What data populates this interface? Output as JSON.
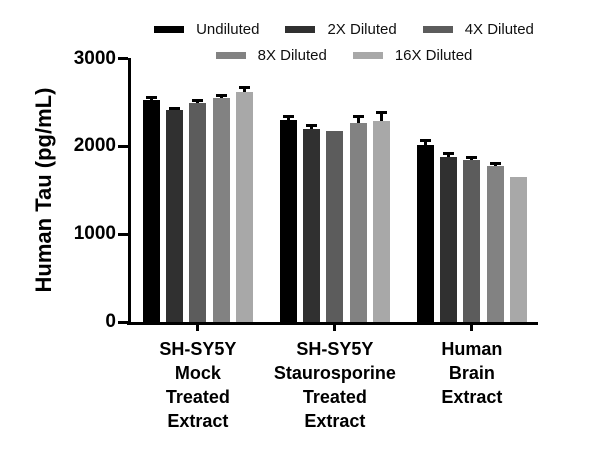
{
  "chart_data": {
    "type": "bar",
    "title": "",
    "ylabel": "Human Tau (pg/mL)",
    "xlabel": "",
    "ylim": [
      0,
      3000
    ],
    "yticks": [
      0,
      1000,
      2000,
      3000
    ],
    "grid": false,
    "legend_position": "top",
    "background": "#ffffff",
    "axis_color": "#000000",
    "error_bar_color": "#000000",
    "categories": [
      [
        "SH-SY5Y",
        "Mock",
        "Treated",
        "Extract"
      ],
      [
        "SH-SY5Y",
        "Staurosporine",
        "Treated",
        "Extract"
      ],
      [
        "Human",
        "Brain",
        "Extract"
      ]
    ],
    "series": [
      {
        "name": "Undiluted",
        "color": "#000000",
        "values": [
          2530,
          2300,
          2020
        ],
        "errors": [
          30,
          45,
          45
        ]
      },
      {
        "name": "2X Diluted",
        "color": "#303030",
        "values": [
          2410,
          2200,
          1880
        ],
        "errors": [
          25,
          35,
          35
        ]
      },
      {
        "name": "4X Diluted",
        "color": "#5c5c5c",
        "values": [
          2490,
          2180,
          1840
        ],
        "errors": [
          30,
          0,
          30
        ]
      },
      {
        "name": "8X Diluted",
        "color": "#828282",
        "values": [
          2550,
          2260,
          1780
        ],
        "errors": [
          30,
          80,
          30
        ]
      },
      {
        "name": "16X Diluted",
        "color": "#a8a8a8",
        "values": [
          2620,
          2290,
          1650
        ],
        "errors": [
          55,
          90,
          0
        ]
      }
    ]
  }
}
